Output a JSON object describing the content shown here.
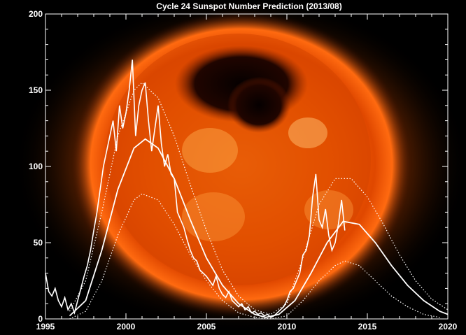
{
  "chart_data": {
    "type": "line",
    "title": "Cycle 24 Sunspot Number Prediction (2013/08)",
    "xlabel": "",
    "ylabel": "",
    "xlim": [
      1995,
      2020
    ],
    "ylim": [
      0,
      200
    ],
    "x_ticks": [
      1995,
      2000,
      2005,
      2010,
      2015,
      2020
    ],
    "y_ticks": [
      0,
      50,
      100,
      150,
      200
    ],
    "grid": false,
    "background": "image of the Sun (orange corona)",
    "colors": {
      "background": "#000000",
      "sun_core": "#ff6a00",
      "sun_corona": "#c83c00",
      "lines": "#ffffff"
    },
    "series": [
      {
        "style": "solid-jagged",
        "x": [
          1995.0,
          1995.2,
          1995.4,
          1995.6,
          1995.8,
          1996.0,
          1996.2,
          1996.4,
          1996.6,
          1996.8,
          1997.0,
          1997.2,
          1997.4,
          1997.6,
          1997.8,
          1998.0,
          1998.2,
          1998.4,
          1998.6,
          1998.8,
          1999.0,
          1999.2,
          1999.4,
          1999.6,
          1999.8,
          2000.0,
          2000.2,
          2000.4,
          2000.6,
          2000.8,
          2001.0,
          2001.2,
          2001.4,
          2001.6,
          2001.8,
          2002.0,
          2002.2,
          2002.4,
          2002.6,
          2002.8,
          2003.0,
          2003.2,
          2003.4,
          2003.6,
          2003.8,
          2004.0,
          2004.2,
          2004.4,
          2004.6,
          2004.8,
          2005.0,
          2005.2,
          2005.4,
          2005.6,
          2005.8,
          2006.0,
          2006.2,
          2006.4,
          2006.6,
          2006.8,
          2007.0,
          2007.2,
          2007.4,
          2007.6,
          2007.8,
          2008.0,
          2008.2,
          2008.4,
          2008.6,
          2008.8,
          2009.0,
          2009.2,
          2009.4,
          2009.6,
          2009.8,
          2010.0,
          2010.2,
          2010.4,
          2010.6,
          2010.8,
          2011.0,
          2011.2,
          2011.4,
          2011.6,
          2011.8,
          2012.0,
          2012.2,
          2012.4,
          2012.6,
          2012.8,
          2013.0,
          2013.2,
          2013.4,
          2013.6
        ],
        "values": [
          30,
          18,
          15,
          20,
          12,
          8,
          14,
          6,
          10,
          4,
          12,
          20,
          28,
          35,
          45,
          58,
          70,
          85,
          100,
          110,
          120,
          130,
          110,
          140,
          125,
          135,
          150,
          170,
          120,
          140,
          150,
          155,
          130,
          110,
          125,
          140,
          115,
          100,
          108,
          95,
          92,
          70,
          65,
          60,
          52,
          45,
          40,
          38,
          32,
          30,
          28,
          25,
          22,
          28,
          20,
          16,
          14,
          18,
          12,
          10,
          8,
          10,
          6,
          8,
          4,
          5,
          3,
          4,
          2,
          3,
          1,
          2,
          4,
          6,
          8,
          12,
          18,
          20,
          25,
          30,
          42,
          45,
          55,
          80,
          95,
          65,
          60,
          72,
          55,
          45,
          50,
          62,
          78,
          58
        ]
      },
      {
        "style": "solid-smooth",
        "x": [
          1996.5,
          1997.5,
          1998.5,
          1999.5,
          2000.5,
          2001.2,
          2002.0,
          2003.0,
          2004.0,
          2005.0,
          2006.0,
          2007.0,
          2008.0,
          2008.7,
          2009.5,
          2010.5,
          2011.5,
          2012.5,
          2013.5,
          2014.5,
          2015.5,
          2016.5,
          2017.5,
          2018.5,
          2019.5,
          2020.0
        ],
        "values": [
          2,
          12,
          45,
          85,
          112,
          118,
          112,
          92,
          65,
          40,
          22,
          10,
          3,
          1,
          3,
          12,
          30,
          50,
          64,
          62,
          50,
          35,
          22,
          12,
          5,
          3
        ]
      },
      {
        "style": "dotted-upper",
        "x": [
          1996.5,
          1997.5,
          1998.5,
          1999.5,
          2000.5,
          2001.0,
          2002.0,
          2003.0,
          2004.0,
          2005.0,
          2006.0,
          2007.0,
          2008.0,
          2009.0,
          2010.0,
          2011.0,
          2012.0,
          2013.0,
          2014.0,
          2015.0,
          2016.0,
          2017.0,
          2018.0,
          2019.0,
          2020.0
        ],
        "values": [
          5,
          25,
          70,
          120,
          150,
          155,
          145,
          120,
          88,
          58,
          32,
          15,
          6,
          3,
          10,
          40,
          75,
          92,
          92,
          80,
          62,
          42,
          25,
          13,
          6
        ]
      },
      {
        "style": "dotted-lower",
        "x": [
          1996.5,
          1997.5,
          1998.5,
          1999.5,
          2000.5,
          2001.0,
          2002.0,
          2003.0,
          2004.0,
          2005.0,
          2006.0,
          2007.0,
          2008.0,
          2009.0,
          2010.0,
          2011.0,
          2012.0,
          2013.0,
          2013.6,
          2014.5,
          2015.5,
          2016.5,
          2017.5,
          2018.5,
          2019.5
        ],
        "values": [
          0,
          5,
          25,
          55,
          78,
          82,
          78,
          62,
          42,
          25,
          12,
          4,
          1,
          0,
          2,
          12,
          25,
          35,
          38,
          35,
          25,
          15,
          8,
          3,
          1
        ]
      }
    ]
  }
}
